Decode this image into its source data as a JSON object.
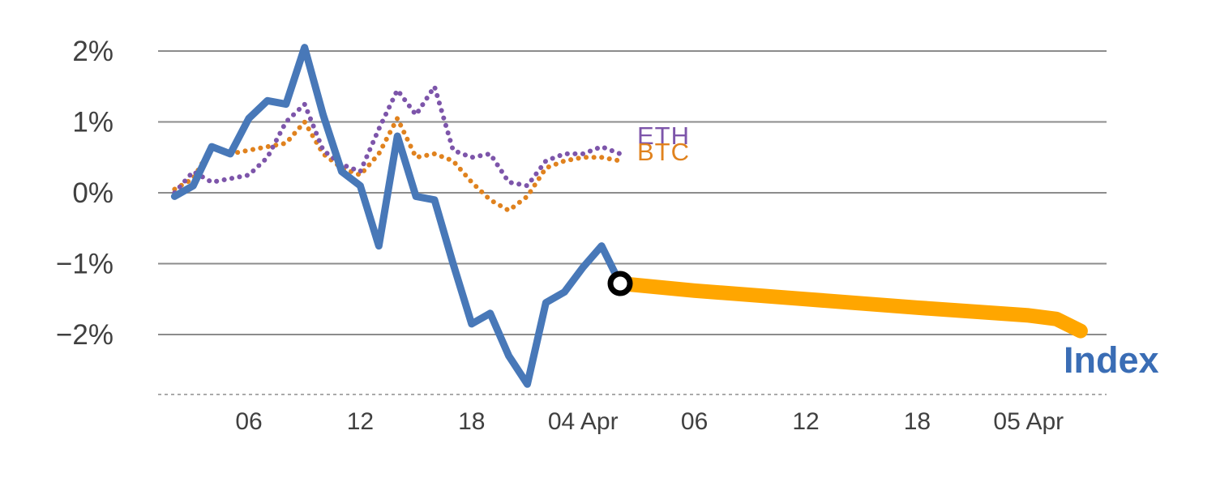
{
  "chart_data": {
    "type": "line",
    "title": "",
    "xlabel": "",
    "ylabel": "",
    "x_unit": "hour-of-period",
    "xlim": [
      1,
      52
    ],
    "ylim": [
      -2.85,
      2.3
    ],
    "grid": "horizontal",
    "legend_position": "inline-labels",
    "y_ticks": [
      {
        "value": 2,
        "label": "2%"
      },
      {
        "value": 1,
        "label": "1%"
      },
      {
        "value": 0,
        "label": "0%"
      },
      {
        "value": -1,
        "label": "−1%"
      },
      {
        "value": -2,
        "label": "−2%"
      }
    ],
    "x_ticks": [
      {
        "hour": 6,
        "label": "06"
      },
      {
        "hour": 12,
        "label": "12"
      },
      {
        "hour": 18,
        "label": "18"
      },
      {
        "hour": 24,
        "label": "04 Apr"
      },
      {
        "hour": 30,
        "label": "06"
      },
      {
        "hour": 36,
        "label": "12"
      },
      {
        "hour": 42,
        "label": "18"
      },
      {
        "hour": 48,
        "label": "05 Apr"
      }
    ],
    "series": [
      {
        "name": "Index forecast",
        "color": "#ffa600",
        "style": "solid",
        "stroke_width": 18,
        "x": [
          26,
          30,
          36,
          42,
          48,
          49.5,
          50.8
        ],
        "values": [
          -1.28,
          -1.38,
          -1.5,
          -1.62,
          -1.73,
          -1.78,
          -1.95
        ]
      },
      {
        "name": "BTC",
        "color": "#e0821e",
        "style": "dotted",
        "stroke_width": 6,
        "x": [
          2,
          3,
          4,
          5,
          6,
          7,
          8,
          9,
          10,
          11,
          12,
          13,
          14,
          15,
          16,
          17,
          18,
          19,
          20,
          21,
          22,
          23,
          24,
          25,
          26
        ],
        "values": [
          0.05,
          0.2,
          0.65,
          0.55,
          0.6,
          0.65,
          0.7,
          1.0,
          0.55,
          0.35,
          0.25,
          0.55,
          1.05,
          0.5,
          0.55,
          0.45,
          0.15,
          -0.1,
          -0.25,
          -0.05,
          0.35,
          0.45,
          0.5,
          0.5,
          0.45
        ]
      },
      {
        "name": "ETH",
        "color": "#7d55aa",
        "style": "dotted",
        "stroke_width": 6,
        "x": [
          2,
          3,
          4,
          5,
          6,
          7,
          8,
          9,
          10,
          11,
          12,
          13,
          14,
          15,
          16,
          17,
          18,
          19,
          20,
          21,
          22,
          23,
          24,
          25,
          26
        ],
        "values": [
          0.0,
          0.3,
          0.15,
          0.2,
          0.25,
          0.5,
          1.0,
          1.25,
          0.6,
          0.4,
          0.3,
          0.9,
          1.45,
          1.1,
          1.5,
          0.6,
          0.5,
          0.55,
          0.15,
          0.1,
          0.45,
          0.55,
          0.55,
          0.65,
          0.55
        ]
      },
      {
        "name": "Index",
        "color": "#4878b8",
        "style": "solid",
        "stroke_width": 9,
        "x": [
          2,
          3,
          4,
          5,
          6,
          7,
          8,
          9,
          10,
          11,
          12,
          13,
          14,
          15,
          16,
          17,
          18,
          19,
          20,
          21,
          22,
          23,
          24,
          25,
          26
        ],
        "values": [
          -0.05,
          0.1,
          0.65,
          0.55,
          1.05,
          1.3,
          1.25,
          2.05,
          1.1,
          0.3,
          0.1,
          -0.75,
          0.8,
          -0.05,
          -0.1,
          -1.0,
          -1.85,
          -1.7,
          -2.3,
          -2.7,
          -1.55,
          -1.4,
          -1.05,
          -0.75,
          -1.28
        ]
      }
    ],
    "marker": {
      "x": 26,
      "value": -1.28,
      "ring_color": "#000000",
      "fill_color": "#ffffff"
    },
    "labels": {
      "eth": "ETH",
      "btc": "BTC",
      "index": "Index"
    },
    "colors": {
      "index_line": "#4878b8",
      "eth_line": "#7d55aa",
      "btc_line": "#e0821e",
      "forecast_band": "#ffa600",
      "gridline": "#8c8c8c",
      "axis_dashed": "#aaaaaa",
      "tick_text": "#404040"
    }
  }
}
